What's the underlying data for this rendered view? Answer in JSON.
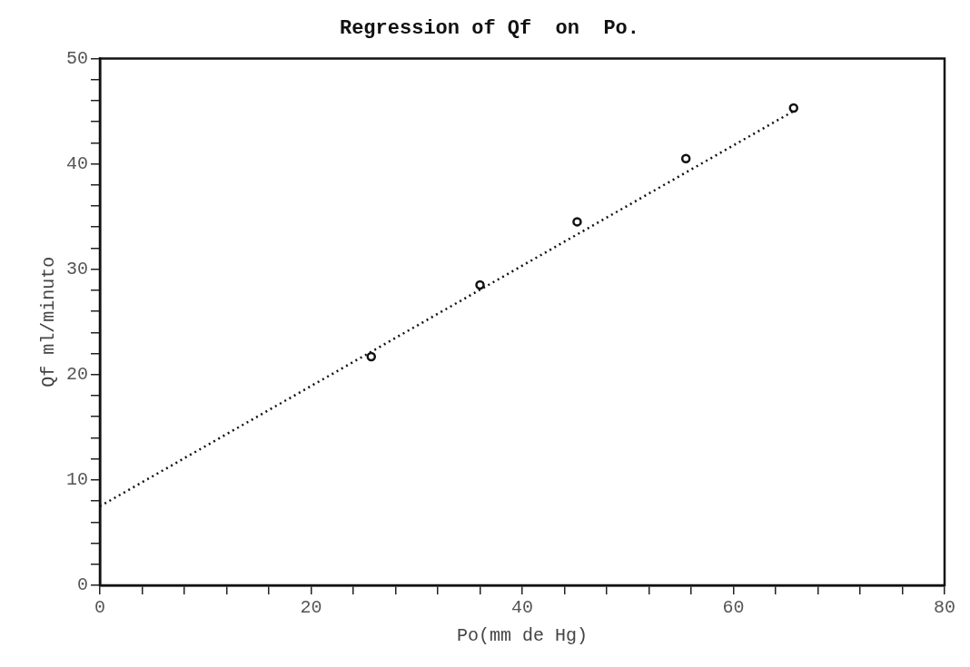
{
  "chart_data": {
    "type": "scatter",
    "title": "Regression of Qf  on  Po.",
    "xlabel": "Po(mm de Hg)",
    "ylabel": "Qf ml/minuto",
    "series": [
      {
        "color": "#111111",
        "x": [
          25.7,
          36,
          45.2,
          55.5,
          65.7
        ],
        "values": [
          21.7,
          28.5,
          34.5,
          40.5,
          45.3
        ],
        "marker": "circle"
      },
      {
        "type": "line",
        "color": "#111111",
        "x": [
          0,
          65.7
        ],
        "values": [
          7.5,
          45
        ],
        "line_style": "dotted",
        "marker": "none"
      }
    ],
    "xlim": [
      0,
      80
    ],
    "ylim": [
      0,
      50
    ],
    "xticks": [
      0,
      {
        "value": 4,
        "label": null
      },
      {
        "value": 8,
        "label": null
      },
      {
        "value": 12,
        "label": null
      },
      {
        "value": 16,
        "label": null
      },
      20,
      {
        "value": 24,
        "label": null
      },
      {
        "value": 28,
        "label": null
      },
      {
        "value": 32,
        "label": null
      },
      {
        "value": 36,
        "label": null
      },
      40,
      {
        "value": 44,
        "label": null
      },
      {
        "value": 48,
        "label": null
      },
      {
        "value": 52,
        "label": null
      },
      {
        "value": 56,
        "label": null
      },
      60,
      {
        "value": 64,
        "label": null
      },
      {
        "value": 68,
        "label": null
      },
      {
        "value": 72,
        "label": null
      },
      {
        "value": 76,
        "label": null
      },
      80
    ],
    "yticks": [
      0,
      {
        "value": 2,
        "label": null
      },
      {
        "value": 4,
        "label": null
      },
      {
        "value": 6,
        "label": null
      },
      {
        "value": 8,
        "label": null
      },
      10,
      {
        "value": 12,
        "label": null
      },
      {
        "value": 14,
        "label": null
      },
      {
        "value": 16,
        "label": null
      },
      {
        "value": 18,
        "label": null
      },
      20,
      {
        "value": 22,
        "label": null
      },
      {
        "value": 24,
        "label": null
      },
      {
        "value": 26,
        "label": null
      },
      {
        "value": 28,
        "label": null
      },
      30,
      {
        "value": 32,
        "label": null
      },
      {
        "value": 34,
        "label": null
      },
      {
        "value": 36,
        "label": null
      },
      {
        "value": 38,
        "label": null
      },
      40,
      {
        "value": 42,
        "label": null
      },
      {
        "value": 44,
        "label": null
      },
      {
        "value": 46,
        "label": null
      },
      {
        "value": 48,
        "label": null
      },
      50
    ],
    "grid": false,
    "legend": false
  }
}
